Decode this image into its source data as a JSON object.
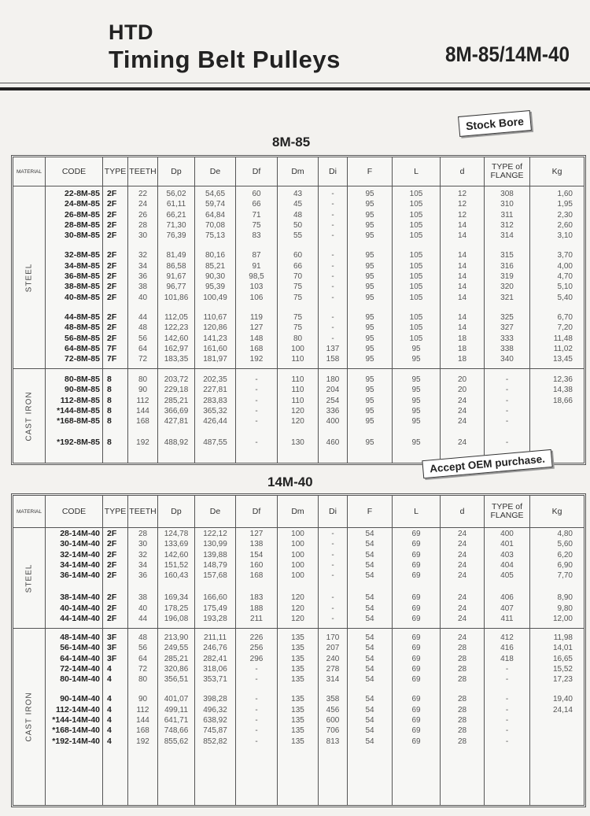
{
  "header": {
    "brand": "HTD",
    "title": "Timing Belt Pulleys",
    "series_code": "8M-85/14M-40"
  },
  "stamps": {
    "stock_bore": "Stock Bore",
    "oem": "Accept OEM purchase."
  },
  "columns": [
    "MATERIAL",
    "CODE",
    "TYPE",
    "TEETH",
    "Dp",
    "De",
    "Df",
    "Dm",
    "Di",
    "F",
    "L",
    "d",
    "TYPE of FLANGE",
    "Kg"
  ],
  "tables": [
    {
      "title": "8M-85",
      "sections": [
        {
          "material": "STEEL",
          "blocks": [
            [
              [
                "22-8M-85",
                "2F",
                "22",
                "56,02",
                "54,65",
                "60",
                "43",
                "-",
                "95",
                "105",
                "12",
                "308",
                "1,60"
              ],
              [
                "24-8M-85",
                "2F",
                "24",
                "61,11",
                "59,74",
                "66",
                "45",
                "-",
                "95",
                "105",
                "12",
                "310",
                "1,95"
              ],
              [
                "26-8M-85",
                "2F",
                "26",
                "66,21",
                "64,84",
                "71",
                "48",
                "-",
                "95",
                "105",
                "12",
                "311",
                "2,30"
              ],
              [
                "28-8M-85",
                "2F",
                "28",
                "71,30",
                "70,08",
                "75",
                "50",
                "-",
                "95",
                "105",
                "14",
                "312",
                "2,60"
              ],
              [
                "30-8M-85",
                "2F",
                "30",
                "76,39",
                "75,13",
                "83",
                "55",
                "-",
                "95",
                "105",
                "14",
                "314",
                "3,10"
              ]
            ],
            [
              [
                "32-8M-85",
                "2F",
                "32",
                "81,49",
                "80,16",
                "87",
                "60",
                "-",
                "95",
                "105",
                "14",
                "315",
                "3,70"
              ],
              [
                "34-8M-85",
                "2F",
                "34",
                "86,58",
                "85,21",
                "91",
                "66",
                "-",
                "95",
                "105",
                "14",
                "316",
                "4,00"
              ],
              [
                "36-8M-85",
                "2F",
                "36",
                "91,67",
                "90,30",
                "98,5",
                "70",
                "-",
                "95",
                "105",
                "14",
                "319",
                "4,70"
              ],
              [
                "38-8M-85",
                "2F",
                "38",
                "96,77",
                "95,39",
                "103",
                "75",
                "-",
                "95",
                "105",
                "14",
                "320",
                "5,10"
              ],
              [
                "40-8M-85",
                "2F",
                "40",
                "101,86",
                "100,49",
                "106",
                "75",
                "-",
                "95",
                "105",
                "14",
                "321",
                "5,40"
              ]
            ],
            [
              [
                "44-8M-85",
                "2F",
                "44",
                "112,05",
                "110,67",
                "119",
                "75",
                "-",
                "95",
                "105",
                "14",
                "325",
                "6,70"
              ],
              [
                "48-8M-85",
                "2F",
                "48",
                "122,23",
                "120,86",
                "127",
                "75",
                "-",
                "95",
                "105",
                "14",
                "327",
                "7,20"
              ],
              [
                "56-8M-85",
                "2F",
                "56",
                "142,60",
                "141,23",
                "148",
                "80",
                "-",
                "95",
                "105",
                "18",
                "333",
                "11,48"
              ],
              [
                "64-8M-85",
                "7F",
                "64",
                "162,97",
                "161,60",
                "168",
                "100",
                "137",
                "95",
                "95",
                "18",
                "338",
                "11,02"
              ],
              [
                "72-8M-85",
                "7F",
                "72",
                "183,35",
                "181,97",
                "192",
                "110",
                "158",
                "95",
                "95",
                "18",
                "340",
                "13,45"
              ]
            ]
          ]
        },
        {
          "material": "CAST IRON",
          "blocks": [
            [
              [
                "80-8M-85",
                "8",
                "80",
                "203,72",
                "202,35",
                "-",
                "110",
                "180",
                "95",
                "95",
                "20",
                "-",
                "12,36"
              ],
              [
                "90-8M-85",
                "8",
                "90",
                "229,18",
                "227,81",
                "-",
                "110",
                "204",
                "95",
                "95",
                "20",
                "-",
                "14,38"
              ],
              [
                "112-8M-85",
                "8",
                "112",
                "285,21",
                "283,83",
                "-",
                "110",
                "254",
                "95",
                "95",
                "24",
                "-",
                "18,66"
              ],
              [
                "*144-8M-85",
                "8",
                "144",
                "366,69",
                "365,32",
                "-",
                "120",
                "336",
                "95",
                "95",
                "24",
                "-",
                ""
              ],
              [
                "*168-8M-85",
                "8",
                "168",
                "427,81",
                "426,44",
                "-",
                "120",
                "400",
                "95",
                "95",
                "24",
                "-",
                ""
              ]
            ],
            [
              [
                "*192-8M-85",
                "8",
                "192",
                "488,92",
                "487,55",
                "-",
                "130",
                "460",
                "95",
                "95",
                "24",
                "-",
                ""
              ]
            ]
          ]
        }
      ]
    },
    {
      "title": "14M-40",
      "sections": [
        {
          "material": "STEEL",
          "blocks": [
            [
              [
                "28-14M-40",
                "2F",
                "28",
                "124,78",
                "122,12",
                "127",
                "100",
                "-",
                "54",
                "69",
                "24",
                "400",
                "4,80"
              ],
              [
                "30-14M-40",
                "2F",
                "30",
                "133,69",
                "130,99",
                "138",
                "100",
                "-",
                "54",
                "69",
                "24",
                "401",
                "5,60"
              ],
              [
                "32-14M-40",
                "2F",
                "32",
                "142,60",
                "139,88",
                "154",
                "100",
                "-",
                "54",
                "69",
                "24",
                "403",
                "6,20"
              ],
              [
                "34-14M-40",
                "2F",
                "34",
                "151,52",
                "148,79",
                "160",
                "100",
                "-",
                "54",
                "69",
                "24",
                "404",
                "6,90"
              ],
              [
                "36-14M-40",
                "2F",
                "36",
                "160,43",
                "157,68",
                "168",
                "100",
                "-",
                "54",
                "69",
                "24",
                "405",
                "7,70"
              ]
            ],
            [
              [
                "38-14M-40",
                "2F",
                "38",
                "169,34",
                "166,60",
                "183",
                "120",
                "-",
                "54",
                "69",
                "24",
                "406",
                "8,90"
              ],
              [
                "40-14M-40",
                "2F",
                "40",
                "178,25",
                "175,49",
                "188",
                "120",
                "-",
                "54",
                "69",
                "24",
                "407",
                "9,80"
              ],
              [
                "44-14M-40",
                "2F",
                "44",
                "196,08",
                "193,28",
                "211",
                "120",
                "-",
                "54",
                "69",
                "24",
                "411",
                "12,00"
              ]
            ]
          ]
        },
        {
          "material": "CAST IRON",
          "blocks": [
            [
              [
                "48-14M-40",
                "3F",
                "48",
                "213,90",
                "211,11",
                "226",
                "135",
                "170",
                "54",
                "69",
                "24",
                "412",
                "11,98"
              ],
              [
                "56-14M-40",
                "3F",
                "56",
                "249,55",
                "246,76",
                "256",
                "135",
                "207",
                "54",
                "69",
                "28",
                "416",
                "14,01"
              ],
              [
                "64-14M-40",
                "3F",
                "64",
                "285,21",
                "282,41",
                "296",
                "135",
                "240",
                "54",
                "69",
                "28",
                "418",
                "16,65"
              ],
              [
                "72-14M-40",
                "4",
                "72",
                "320,86",
                "318,06",
                "-",
                "135",
                "278",
                "54",
                "69",
                "28",
                "-",
                "15,52"
              ],
              [
                "80-14M-40",
                "4",
                "80",
                "356,51",
                "353,71",
                "-",
                "135",
                "314",
                "54",
                "69",
                "28",
                "-",
                "17,23"
              ]
            ],
            [
              [
                "90-14M-40",
                "4",
                "90",
                "401,07",
                "398,28",
                "-",
                "135",
                "358",
                "54",
                "69",
                "28",
                "-",
                "19,40"
              ],
              [
                "112-14M-40",
                "4",
                "112",
                "499,11",
                "496,32",
                "-",
                "135",
                "456",
                "54",
                "69",
                "28",
                "-",
                "24,14"
              ],
              [
                "*144-14M-40",
                "4",
                "144",
                "641,71",
                "638,92",
                "-",
                "135",
                "600",
                "54",
                "69",
                "28",
                "-",
                ""
              ],
              [
                "*168-14M-40",
                "4",
                "168",
                "748,66",
                "745,87",
                "-",
                "135",
                "706",
                "54",
                "69",
                "28",
                "-",
                ""
              ],
              [
                "*192-14M-40",
                "4",
                "192",
                "855,62",
                "852,82",
                "-",
                "135",
                "813",
                "54",
                "69",
                "28",
                "-",
                ""
              ]
            ]
          ]
        }
      ]
    }
  ]
}
